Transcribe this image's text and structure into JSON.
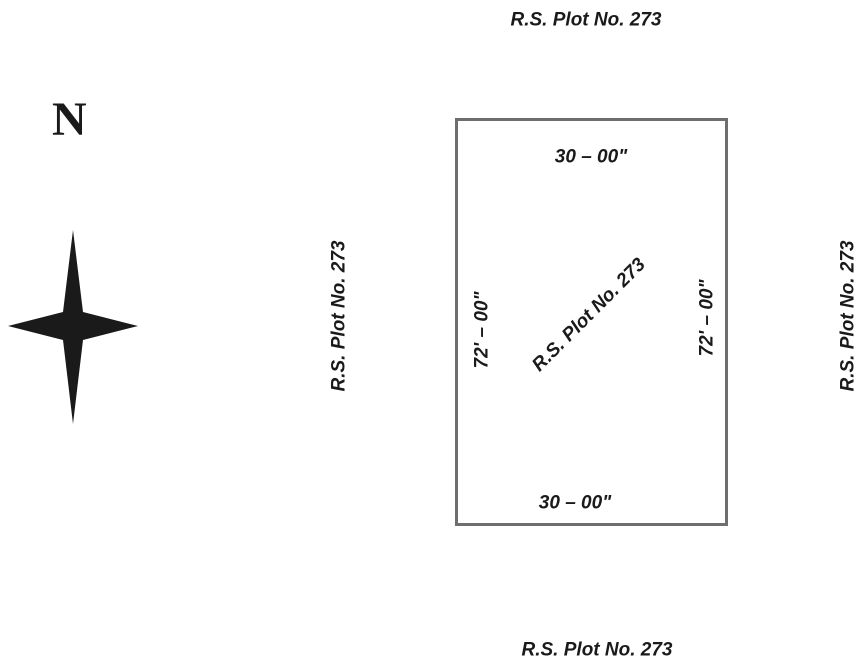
{
  "north_label": "N",
  "compass": {
    "icon": "compass-star-icon",
    "color": "#1a1a1a"
  },
  "plot": {
    "center_label": "R.S. Plot No. 273",
    "top_dim": "30 – 00\"",
    "bottom_dim": "30 – 00\"",
    "left_dim": "72' – 00\"",
    "right_dim": "72' – 00\"",
    "border_color": "#6e6e6e"
  },
  "neighbors": {
    "north": "R.S. Plot No. 273",
    "south": "R.S. Plot No. 273",
    "west": "R.S. Plot No. 273",
    "east": "R.S. Plot No. 273"
  }
}
